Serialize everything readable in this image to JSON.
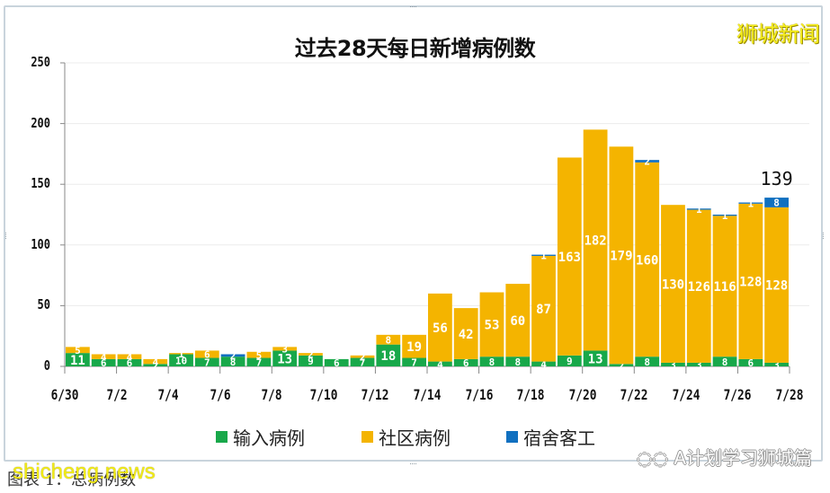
{
  "chart_data": {
    "type": "bar",
    "stacked": true,
    "title": "过去28天每日新增病例数",
    "xlabel": "",
    "ylabel": "",
    "ylim": [
      0,
      250
    ],
    "yticks": [
      0,
      50,
      100,
      150,
      200,
      250
    ],
    "grid": true,
    "legend_position": "bottom",
    "categories": [
      "6/30",
      "7/1",
      "7/2",
      "7/3",
      "7/4",
      "7/5",
      "7/6",
      "7/7",
      "7/8",
      "7/9",
      "7/10",
      "7/11",
      "7/12",
      "7/13",
      "7/14",
      "7/15",
      "7/16",
      "7/17",
      "7/18",
      "7/19",
      "7/20",
      "7/21",
      "7/22",
      "7/23",
      "7/24",
      "7/25",
      "7/26",
      "7/27"
    ],
    "xtick_labels": [
      "6/30",
      "7/2",
      "7/4",
      "7/6",
      "7/8",
      "7/10",
      "7/12",
      "7/14",
      "7/16",
      "7/18",
      "7/20",
      "7/22",
      "7/24",
      "7/26",
      "7/28"
    ],
    "series": [
      {
        "name": "输入病例",
        "color": "#18a84a",
        "values": [
          11,
          6,
          6,
          2,
          10,
          7,
          8,
          7,
          13,
          9,
          6,
          7,
          18,
          7,
          4,
          6,
          8,
          8,
          4,
          9,
          13,
          2,
          8,
          3,
          3,
          8,
          6,
          3
        ]
      },
      {
        "name": "社区病例",
        "color": "#f4b400",
        "values": [
          5,
          4,
          4,
          4,
          1,
          6,
          0,
          5,
          3,
          2,
          0,
          2,
          8,
          19,
          56,
          42,
          53,
          60,
          87,
          163,
          182,
          179,
          160,
          130,
          126,
          116,
          128,
          128
        ]
      },
      {
        "name": "宿舍客工",
        "color": "#1170c0",
        "values": [
          0,
          0,
          0,
          0,
          0,
          0,
          2,
          0,
          0,
          0,
          0,
          0,
          0,
          0,
          0,
          0,
          0,
          0,
          1,
          0,
          0,
          0,
          2,
          0,
          1,
          1,
          1,
          8
        ]
      }
    ],
    "annotations": [
      {
        "x": "7/27",
        "text": "139"
      }
    ]
  },
  "header": {
    "title": "过去28天每日新增病例数",
    "brand": "狮城新闻"
  },
  "legend": {
    "items": [
      {
        "label": "输入病例",
        "color": "#18a84a"
      },
      {
        "label": "社区病例",
        "color": "#f4b400"
      },
      {
        "label": "宿舍客工",
        "color": "#1170c0"
      }
    ]
  },
  "footer": {
    "wechat_source": "A计划学习狮城篇",
    "caption": "图表 1：总病例数",
    "site": "shicheng.news"
  },
  "total_label": "139"
}
